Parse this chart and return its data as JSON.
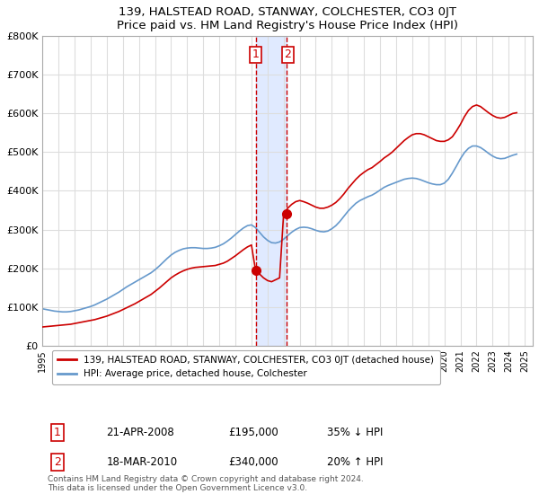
{
  "title": "139, HALSTEAD ROAD, STANWAY, COLCHESTER, CO3 0JT",
  "subtitle": "Price paid vs. HM Land Registry's House Price Index (HPI)",
  "ylabel_ticks": [
    "£0",
    "£100K",
    "£200K",
    "£300K",
    "£400K",
    "£500K",
    "£600K",
    "£700K",
    "£800K"
  ],
  "ytick_values": [
    0,
    100000,
    200000,
    300000,
    400000,
    500000,
    600000,
    700000,
    800000
  ],
  "ylim": [
    0,
    800000
  ],
  "xlim_start": 1995.0,
  "xlim_end": 2025.5,
  "red_line_label": "139, HALSTEAD ROAD, STANWAY, COLCHESTER, CO3 0JT (detached house)",
  "blue_line_label": "HPI: Average price, detached house, Colchester",
  "transaction1_label": "1",
  "transaction1_date": "21-APR-2008",
  "transaction1_price": "£195,000",
  "transaction1_hpi": "35% ↓ HPI",
  "transaction1_x": 2008.3,
  "transaction1_y": 195000,
  "transaction2_label": "2",
  "transaction2_date": "18-MAR-2010",
  "transaction2_price": "£340,000",
  "transaction2_hpi": "20% ↑ HPI",
  "transaction2_x": 2010.2,
  "transaction2_y": 340000,
  "vline1_x": 2008.3,
  "vline2_x": 2010.2,
  "copyright_text": "Contains HM Land Registry data © Crown copyright and database right 2024.\nThis data is licensed under the Open Government Licence v3.0.",
  "red_color": "#cc0000",
  "blue_color": "#6699cc",
  "shade_color": "#ccddff",
  "grid_color": "#dddddd",
  "background_color": "#ffffff",
  "red_x": [
    1995.0,
    1995.25,
    1995.5,
    1995.75,
    1996.0,
    1996.25,
    1996.5,
    1996.75,
    1997.0,
    1997.25,
    1997.5,
    1997.75,
    1998.0,
    1998.25,
    1998.5,
    1998.75,
    1999.0,
    1999.25,
    1999.5,
    1999.75,
    2000.0,
    2000.25,
    2000.5,
    2000.75,
    2001.0,
    2001.25,
    2001.5,
    2001.75,
    2002.0,
    2002.25,
    2002.5,
    2002.75,
    2003.0,
    2003.25,
    2003.5,
    2003.75,
    2004.0,
    2004.25,
    2004.5,
    2004.75,
    2005.0,
    2005.25,
    2005.5,
    2005.75,
    2006.0,
    2006.25,
    2006.5,
    2006.75,
    2007.0,
    2007.25,
    2007.5,
    2007.75,
    2008.0,
    2008.25,
    2008.5,
    2008.75,
    2009.0,
    2009.25,
    2009.5,
    2009.75,
    2010.0,
    2010.25,
    2010.5,
    2010.75,
    2011.0,
    2011.25,
    2011.5,
    2011.75,
    2012.0,
    2012.25,
    2012.5,
    2012.75,
    2013.0,
    2013.25,
    2013.5,
    2013.75,
    2014.0,
    2014.25,
    2014.5,
    2014.75,
    2015.0,
    2015.25,
    2015.5,
    2015.75,
    2016.0,
    2016.25,
    2016.5,
    2016.75,
    2017.0,
    2017.25,
    2017.5,
    2017.75,
    2018.0,
    2018.25,
    2018.5,
    2018.75,
    2019.0,
    2019.25,
    2019.5,
    2019.75,
    2020.0,
    2020.25,
    2020.5,
    2020.75,
    2021.0,
    2021.25,
    2021.5,
    2021.75,
    2022.0,
    2022.25,
    2022.5,
    2022.75,
    2023.0,
    2023.25,
    2023.5,
    2023.75,
    2024.0,
    2024.25,
    2024.5
  ],
  "red_y": [
    48000,
    49000,
    50000,
    51000,
    52000,
    53000,
    54000,
    55000,
    57000,
    59000,
    61000,
    63000,
    65000,
    67000,
    70000,
    73000,
    76000,
    80000,
    84000,
    88000,
    93000,
    98000,
    103000,
    108000,
    114000,
    120000,
    126000,
    132000,
    140000,
    148000,
    157000,
    166000,
    175000,
    182000,
    188000,
    193000,
    197000,
    200000,
    202000,
    203000,
    204000,
    205000,
    206000,
    207000,
    210000,
    213000,
    218000,
    225000,
    232000,
    240000,
    248000,
    255000,
    260000,
    195000,
    185000,
    175000,
    168000,
    165000,
    170000,
    175000,
    340000,
    355000,
    365000,
    372000,
    375000,
    372000,
    368000,
    363000,
    358000,
    355000,
    355000,
    358000,
    363000,
    370000,
    380000,
    392000,
    406000,
    418000,
    430000,
    440000,
    448000,
    455000,
    460000,
    468000,
    476000,
    485000,
    492000,
    500000,
    510000,
    520000,
    530000,
    538000,
    545000,
    548000,
    548000,
    545000,
    540000,
    535000,
    530000,
    528000,
    528000,
    532000,
    540000,
    555000,
    572000,
    592000,
    608000,
    618000,
    622000,
    618000,
    610000,
    602000,
    595000,
    590000,
    588000,
    590000,
    595000,
    600000,
    602000
  ],
  "blue_x": [
    1995.0,
    1995.25,
    1995.5,
    1995.75,
    1996.0,
    1996.25,
    1996.5,
    1996.75,
    1997.0,
    1997.25,
    1997.5,
    1997.75,
    1998.0,
    1998.25,
    1998.5,
    1998.75,
    1999.0,
    1999.25,
    1999.5,
    1999.75,
    2000.0,
    2000.25,
    2000.5,
    2000.75,
    2001.0,
    2001.25,
    2001.5,
    2001.75,
    2002.0,
    2002.25,
    2002.5,
    2002.75,
    2003.0,
    2003.25,
    2003.5,
    2003.75,
    2004.0,
    2004.25,
    2004.5,
    2004.75,
    2005.0,
    2005.25,
    2005.5,
    2005.75,
    2006.0,
    2006.25,
    2006.5,
    2006.75,
    2007.0,
    2007.25,
    2007.5,
    2007.75,
    2008.0,
    2008.25,
    2008.5,
    2008.75,
    2009.0,
    2009.25,
    2009.5,
    2009.75,
    2010.0,
    2010.25,
    2010.5,
    2010.75,
    2011.0,
    2011.25,
    2011.5,
    2011.75,
    2012.0,
    2012.25,
    2012.5,
    2012.75,
    2013.0,
    2013.25,
    2013.5,
    2013.75,
    2014.0,
    2014.25,
    2014.5,
    2014.75,
    2015.0,
    2015.25,
    2015.5,
    2015.75,
    2016.0,
    2016.25,
    2016.5,
    2016.75,
    2017.0,
    2017.25,
    2017.5,
    2017.75,
    2018.0,
    2018.25,
    2018.5,
    2018.75,
    2019.0,
    2019.25,
    2019.5,
    2019.75,
    2020.0,
    2020.25,
    2020.5,
    2020.75,
    2021.0,
    2021.25,
    2021.5,
    2021.75,
    2022.0,
    2022.25,
    2022.5,
    2022.75,
    2023.0,
    2023.25,
    2023.5,
    2023.75,
    2024.0,
    2024.25,
    2024.5
  ],
  "blue_y": [
    95000,
    93000,
    91000,
    89000,
    88000,
    87000,
    87000,
    88000,
    90000,
    92000,
    95000,
    98000,
    101000,
    105000,
    110000,
    115000,
    120000,
    126000,
    132000,
    138000,
    145000,
    152000,
    158000,
    164000,
    170000,
    176000,
    182000,
    188000,
    196000,
    205000,
    215000,
    225000,
    234000,
    241000,
    246000,
    250000,
    252000,
    253000,
    253000,
    252000,
    251000,
    251000,
    252000,
    254000,
    258000,
    263000,
    270000,
    278000,
    287000,
    296000,
    304000,
    310000,
    312000,
    305000,
    293000,
    281000,
    272000,
    266000,
    265000,
    268000,
    275000,
    284000,
    293000,
    300000,
    305000,
    306000,
    305000,
    302000,
    298000,
    295000,
    294000,
    296000,
    302000,
    310000,
    321000,
    334000,
    347000,
    358000,
    368000,
    375000,
    380000,
    385000,
    389000,
    395000,
    402000,
    409000,
    414000,
    418000,
    422000,
    426000,
    430000,
    432000,
    433000,
    432000,
    429000,
    425000,
    421000,
    418000,
    416000,
    416000,
    420000,
    430000,
    446000,
    464000,
    483000,
    499000,
    510000,
    516000,
    516000,
    512000,
    505000,
    497000,
    490000,
    485000,
    483000,
    484000,
    488000,
    492000,
    495000
  ]
}
